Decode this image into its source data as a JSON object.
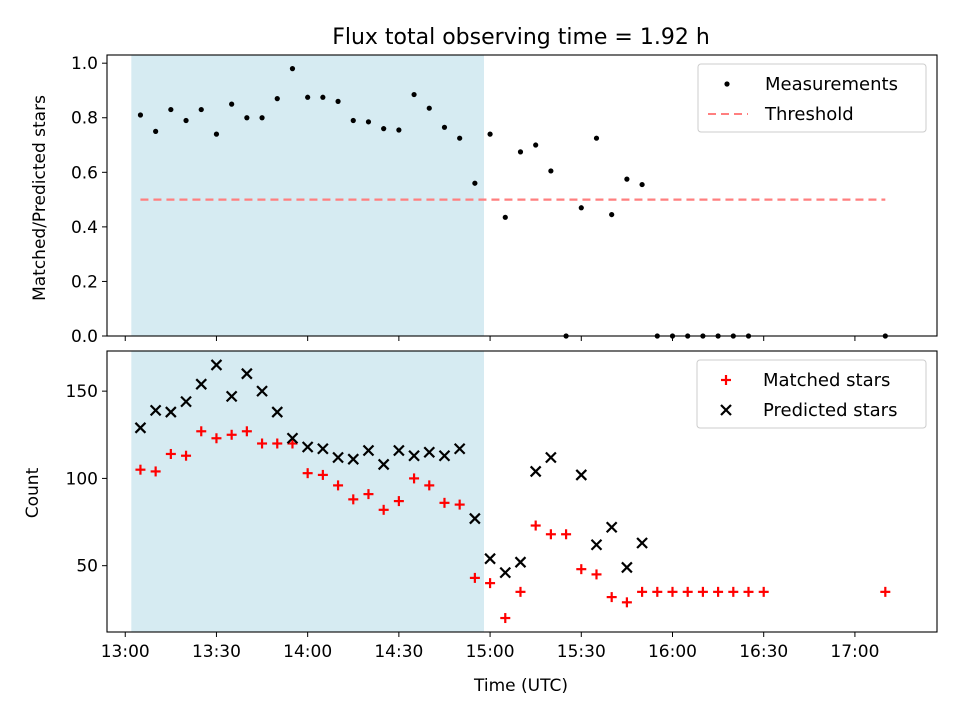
{
  "chart_data": [
    {
      "type": "scatter",
      "title": "Flux total observing time = 1.92 h",
      "ylabel": "Matched/Predicted stars",
      "xlabel": "",
      "xlim_hours": [
        12.9,
        17.45
      ],
      "ylim": [
        0,
        1.03
      ],
      "yticks": [
        0.0,
        0.2,
        0.4,
        0.6,
        0.8,
        1.0
      ],
      "ytick_labels": [
        "0.0",
        "0.2",
        "0.4",
        "0.6",
        "0.8",
        "1.0"
      ],
      "xtick_hours": [
        13.0,
        13.5,
        14.0,
        14.5,
        15.0,
        15.5,
        16.0,
        16.5,
        17.0
      ],
      "shaded_span": [
        "13:02",
        "14:58"
      ],
      "legend_position": "upper right",
      "series": [
        {
          "name": "Measurements",
          "marker": "dot",
          "color": "#000000",
          "points": [
            [
              "13:05",
              0.81
            ],
            [
              "13:10",
              0.75
            ],
            [
              "13:15",
              0.83
            ],
            [
              "13:20",
              0.79
            ],
            [
              "13:25",
              0.83
            ],
            [
              "13:30",
              0.74
            ],
            [
              "13:35",
              0.85
            ],
            [
              "13:40",
              0.8
            ],
            [
              "13:45",
              0.8
            ],
            [
              "13:50",
              0.87
            ],
            [
              "13:55",
              0.98
            ],
            [
              "14:00",
              0.875
            ],
            [
              "14:05",
              0.875
            ],
            [
              "14:10",
              0.86
            ],
            [
              "14:15",
              0.79
            ],
            [
              "14:20",
              0.785
            ],
            [
              "14:25",
              0.76
            ],
            [
              "14:30",
              0.755
            ],
            [
              "14:35",
              0.885
            ],
            [
              "14:40",
              0.835
            ],
            [
              "14:45",
              0.765
            ],
            [
              "14:50",
              0.725
            ],
            [
              "14:55",
              0.56
            ],
            [
              "15:00",
              0.74
            ],
            [
              "15:05",
              0.435
            ],
            [
              "15:10",
              0.675
            ],
            [
              "15:15",
              0.7
            ],
            [
              "15:20",
              0.605
            ],
            [
              "15:25",
              0.0
            ],
            [
              "15:30",
              0.47
            ],
            [
              "15:35",
              0.725
            ],
            [
              "15:40",
              0.445
            ],
            [
              "15:45",
              0.575
            ],
            [
              "15:50",
              0.555
            ],
            [
              "15:55",
              0.0
            ],
            [
              "16:00",
              0.0
            ],
            [
              "16:05",
              0.0
            ],
            [
              "16:10",
              0.0
            ],
            [
              "16:15",
              0.0
            ],
            [
              "16:20",
              0.0
            ],
            [
              "16:25",
              0.0
            ],
            [
              "17:10",
              0.0
            ]
          ]
        },
        {
          "name": "Threshold",
          "marker": "dashed-line",
          "color": "#ff7f7f",
          "points": [
            [
              "13:05",
              0.5
            ],
            [
              "17:10",
              0.5
            ]
          ]
        }
      ]
    },
    {
      "type": "scatter",
      "title": "",
      "xlabel": "Time (UTC)",
      "ylabel": "Count",
      "xlim_hours": [
        12.9,
        17.45
      ],
      "ylim": [
        12,
        173
      ],
      "yticks": [
        50,
        100,
        150
      ],
      "ytick_labels": [
        "50",
        "100",
        "150"
      ],
      "xtick_hours": [
        13.0,
        13.5,
        14.0,
        14.5,
        15.0,
        15.5,
        16.0,
        16.5,
        17.0
      ],
      "xtick_labels": [
        "13:00",
        "13:30",
        "14:00",
        "14:30",
        "15:00",
        "15:30",
        "16:00",
        "16:30",
        "17:00"
      ],
      "shaded_span": [
        "13:02",
        "14:58"
      ],
      "legend_position": "upper right",
      "series": [
        {
          "name": "Matched stars",
          "marker": "plus",
          "color": "#ff0000",
          "points": [
            [
              "13:05",
              105
            ],
            [
              "13:10",
              104
            ],
            [
              "13:15",
              114
            ],
            [
              "13:20",
              113
            ],
            [
              "13:25",
              127
            ],
            [
              "13:30",
              123
            ],
            [
              "13:35",
              125
            ],
            [
              "13:40",
              127
            ],
            [
              "13:45",
              120
            ],
            [
              "13:50",
              120
            ],
            [
              "13:55",
              120
            ],
            [
              "14:00",
              103
            ],
            [
              "14:05",
              102
            ],
            [
              "14:10",
              96
            ],
            [
              "14:15",
              88
            ],
            [
              "14:20",
              91
            ],
            [
              "14:25",
              82
            ],
            [
              "14:30",
              87
            ],
            [
              "14:35",
              100
            ],
            [
              "14:40",
              96
            ],
            [
              "14:45",
              86
            ],
            [
              "14:50",
              85
            ],
            [
              "14:55",
              43
            ],
            [
              "15:00",
              40
            ],
            [
              "15:05",
              20
            ],
            [
              "15:10",
              35
            ],
            [
              "15:15",
              73
            ],
            [
              "15:20",
              68
            ],
            [
              "15:25",
              68
            ],
            [
              "15:30",
              48
            ],
            [
              "15:35",
              45
            ],
            [
              "15:40",
              32
            ],
            [
              "15:45",
              29
            ],
            [
              "15:50",
              35
            ],
            [
              "15:55",
              35
            ],
            [
              "16:00",
              35
            ],
            [
              "16:05",
              35
            ],
            [
              "16:10",
              35
            ],
            [
              "16:15",
              35
            ],
            [
              "16:20",
              35
            ],
            [
              "16:25",
              35
            ],
            [
              "16:30",
              35
            ],
            [
              "17:10",
              35
            ]
          ]
        },
        {
          "name": "Predicted stars",
          "marker": "x",
          "color": "#000000",
          "points": [
            [
              "13:05",
              129
            ],
            [
              "13:10",
              139
            ],
            [
              "13:15",
              138
            ],
            [
              "13:20",
              144
            ],
            [
              "13:25",
              154
            ],
            [
              "13:30",
              165
            ],
            [
              "13:35",
              147
            ],
            [
              "13:40",
              160
            ],
            [
              "13:45",
              150
            ],
            [
              "13:50",
              138
            ],
            [
              "13:55",
              123
            ],
            [
              "14:00",
              118
            ],
            [
              "14:05",
              117
            ],
            [
              "14:10",
              112
            ],
            [
              "14:15",
              111
            ],
            [
              "14:20",
              116
            ],
            [
              "14:25",
              108
            ],
            [
              "14:30",
              116
            ],
            [
              "14:35",
              113
            ],
            [
              "14:40",
              115
            ],
            [
              "14:45",
              113
            ],
            [
              "14:50",
              117
            ],
            [
              "14:55",
              77
            ],
            [
              "15:00",
              54
            ],
            [
              "15:05",
              46
            ],
            [
              "15:10",
              52
            ],
            [
              "15:15",
              104
            ],
            [
              "15:20",
              112
            ],
            [
              "15:30",
              102
            ],
            [
              "15:35",
              62
            ],
            [
              "15:40",
              72
            ],
            [
              "15:45",
              49
            ],
            [
              "15:50",
              63
            ]
          ]
        }
      ]
    }
  ],
  "colors": {
    "span_fill": "#add8e6",
    "threshold": "#ff7f7f",
    "matched": "#ff0000",
    "predicted": "#000000",
    "measurements": "#000000"
  }
}
